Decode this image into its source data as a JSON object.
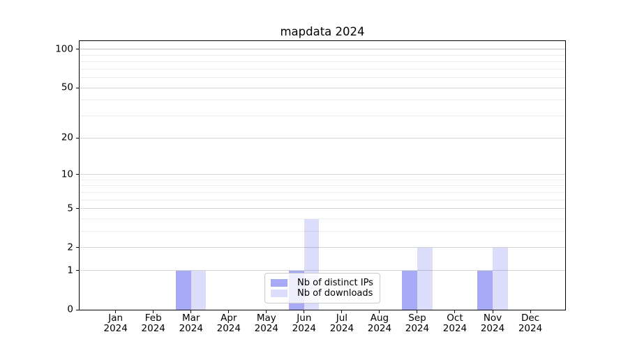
{
  "chart_data": {
    "type": "bar",
    "title": "mapdata 2024",
    "categories": [
      "Jan",
      "Feb",
      "Mar",
      "Apr",
      "May",
      "Jun",
      "Jul",
      "Aug",
      "Sep",
      "Oct",
      "Nov",
      "Dec"
    ],
    "category_year": "2024",
    "series": [
      {
        "name": "Nb of distinct IPs",
        "values": [
          0,
          0,
          1,
          0,
          0,
          1,
          0,
          0,
          1,
          0,
          1,
          0
        ],
        "color": "rgba(81,85,235,0.5)"
      },
      {
        "name": "Nb of downloads",
        "values": [
          0,
          0,
          1,
          0,
          0,
          4,
          0,
          0,
          2,
          0,
          2,
          0
        ],
        "color": "rgba(81,85,235,0.2)"
      }
    ],
    "xlabel": "",
    "ylabel": "",
    "yscale": "log1p",
    "ylim": [
      0,
      116
    ],
    "yticks": [
      0,
      1,
      2,
      5,
      10,
      20,
      50,
      100
    ],
    "yticks_minor": [
      3,
      4,
      6,
      7,
      8,
      9,
      30,
      40,
      60,
      70,
      80,
      90
    ],
    "grid": "horizontal, major and minor",
    "legend_position": "lower center"
  },
  "colors": {
    "spine": "#000000",
    "grid_major": "#d4d4d4",
    "grid_major_top": "#c2c2c2",
    "grid_minor": "#ececec",
    "text": "#000000",
    "legend_border": "#cbcbcb",
    "legend_background": "rgba(255,255,255,0.8)"
  }
}
